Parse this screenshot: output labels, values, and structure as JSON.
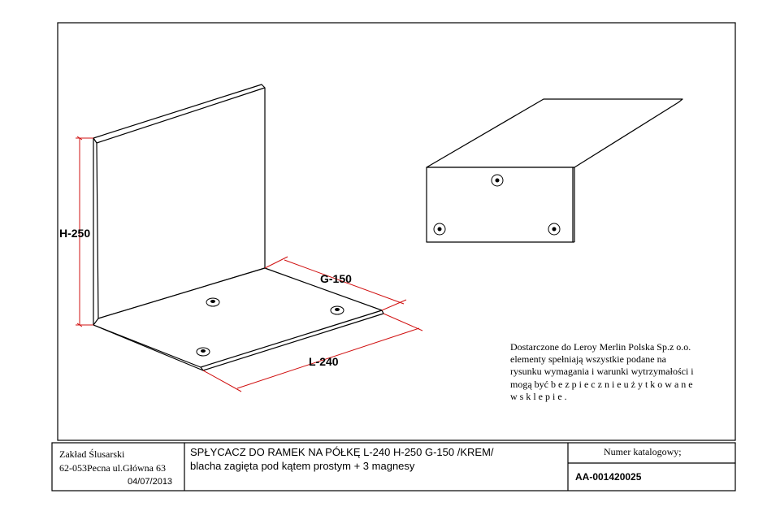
{
  "dimensions": {
    "height": "H-250",
    "depth": "G-150",
    "length": "L-240"
  },
  "note": {
    "lines": [
      "Dostarczone do Leroy Merlin Polska Sp.z o.o.",
      "elementy spełniają wszystkie podane na",
      "rysunku wymagania i warunki wytrzymałości i",
      "mogą być b e z p i e c z n i e   u ż y t k o w a n e",
      "w   s k l e p i e ."
    ]
  },
  "title_block": {
    "company_name": "Zakład Ślusarski",
    "company_address": "62-053Pecna ul.Główna 63",
    "date": "04/07/2013",
    "description_line1": "SPŁYCACZ DO RAMEK NA PÓŁKĘ  L-240  H-250  G-150 /KREM/",
    "description_line2": "blacha zagięta pod kątem prostym + 3 magnesy",
    "catalog_label": "Numer katalogowy;",
    "catalog_number": "AA-001420025"
  },
  "colors": {
    "dimension_line": "#d01010",
    "outline": "#000000"
  }
}
